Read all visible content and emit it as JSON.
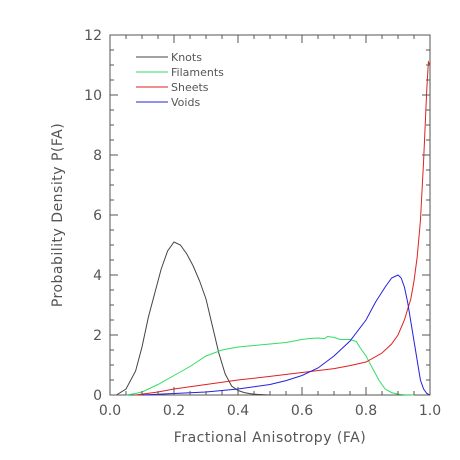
{
  "chart_data": {
    "type": "line",
    "title": "",
    "xlabel": "Fractional Anisotropy (FA)",
    "ylabel": "Probability Density P(FA)",
    "xlim": [
      0.0,
      1.0
    ],
    "ylim": [
      0,
      12
    ],
    "xticks": [
      "0.0",
      "0.2",
      "0.4",
      "0.6",
      "0.8",
      "1.0"
    ],
    "yticks": [
      "0",
      "2",
      "4",
      "6",
      "8",
      "10",
      "12"
    ],
    "grid": false,
    "legend_position": "top-left",
    "series": [
      {
        "name": "Knots",
        "color": "#444444",
        "x": [
          0.02,
          0.05,
          0.08,
          0.1,
          0.12,
          0.14,
          0.16,
          0.18,
          0.2,
          0.22,
          0.24,
          0.26,
          0.28,
          0.3,
          0.32,
          0.34,
          0.36,
          0.38,
          0.4,
          0.42,
          0.44,
          0.46,
          0.48,
          0.5
        ],
        "y": [
          0.0,
          0.2,
          0.8,
          1.6,
          2.6,
          3.4,
          4.2,
          4.8,
          5.1,
          5.0,
          4.7,
          4.3,
          3.8,
          3.2,
          2.3,
          1.4,
          0.7,
          0.3,
          0.15,
          0.08,
          0.04,
          0.02,
          0.01,
          0.0
        ]
      },
      {
        "name": "Filaments",
        "color": "#33dd66",
        "x": [
          0.05,
          0.08,
          0.1,
          0.15,
          0.2,
          0.25,
          0.3,
          0.35,
          0.4,
          0.45,
          0.5,
          0.55,
          0.6,
          0.62,
          0.65,
          0.67,
          0.68,
          0.7,
          0.72,
          0.75,
          0.77,
          0.78,
          0.8,
          0.82,
          0.84,
          0.86,
          0.88,
          0.9,
          0.92,
          0.95
        ],
        "y": [
          0.0,
          0.05,
          0.1,
          0.35,
          0.65,
          0.95,
          1.3,
          1.5,
          1.6,
          1.65,
          1.7,
          1.75,
          1.85,
          1.88,
          1.9,
          1.88,
          1.95,
          1.92,
          1.85,
          1.85,
          1.78,
          1.6,
          1.3,
          0.9,
          0.5,
          0.2,
          0.08,
          0.03,
          0.01,
          0.0
        ]
      },
      {
        "name": "Sheets",
        "color": "#dd2222",
        "x": [
          0.08,
          0.15,
          0.2,
          0.3,
          0.4,
          0.5,
          0.6,
          0.7,
          0.75,
          0.8,
          0.85,
          0.88,
          0.9,
          0.92,
          0.94,
          0.95,
          0.96,
          0.97,
          0.975,
          0.98,
          0.985,
          0.99,
          0.995,
          1.0
        ],
        "y": [
          0.0,
          0.1,
          0.2,
          0.35,
          0.5,
          0.62,
          0.75,
          0.88,
          0.98,
          1.1,
          1.4,
          1.7,
          2.0,
          2.5,
          3.2,
          3.8,
          4.6,
          5.8,
          6.8,
          7.8,
          9.0,
          10.2,
          11.1,
          11.0
        ]
      },
      {
        "name": "Voids",
        "color": "#2222dd",
        "x": [
          0.1,
          0.2,
          0.3,
          0.4,
          0.5,
          0.55,
          0.6,
          0.65,
          0.7,
          0.75,
          0.8,
          0.83,
          0.86,
          0.88,
          0.9,
          0.91,
          0.92,
          0.93,
          0.95,
          0.97,
          0.98,
          0.99,
          1.0
        ],
        "y": [
          0.0,
          0.05,
          0.1,
          0.2,
          0.35,
          0.48,
          0.65,
          0.9,
          1.3,
          1.8,
          2.5,
          3.1,
          3.6,
          3.9,
          4.0,
          3.9,
          3.6,
          3.1,
          1.8,
          0.5,
          0.2,
          0.05,
          0.0
        ]
      }
    ]
  }
}
